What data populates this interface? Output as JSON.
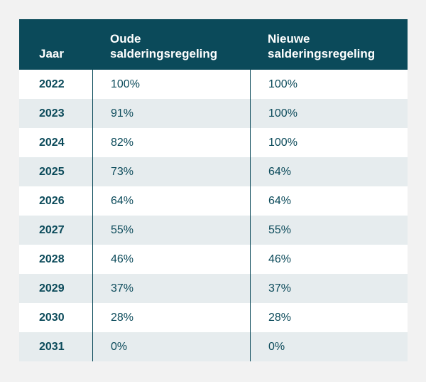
{
  "table": {
    "headers": [
      "Jaar",
      "Oude\nsalderingsregeling",
      "Nieuwe\nsalderingsregeling"
    ],
    "rows": [
      [
        "2022",
        "100%",
        "100%"
      ],
      [
        "2023",
        "91%",
        "100%"
      ],
      [
        "2024",
        "82%",
        "100%"
      ],
      [
        "2025",
        "73%",
        "64%"
      ],
      [
        "2026",
        "64%",
        "64%"
      ],
      [
        "2027",
        "55%",
        "55%"
      ],
      [
        "2028",
        "46%",
        "46%"
      ],
      [
        "2029",
        "37%",
        "37%"
      ],
      [
        "2030",
        "28%",
        "28%"
      ],
      [
        "2031",
        "0%",
        "0%"
      ]
    ]
  },
  "colors": {
    "header_bg": "#0b4a5a",
    "row_alt_bg": "#e6ecee",
    "text": "#0b4a5a",
    "page_bg": "#f2f2f2"
  }
}
